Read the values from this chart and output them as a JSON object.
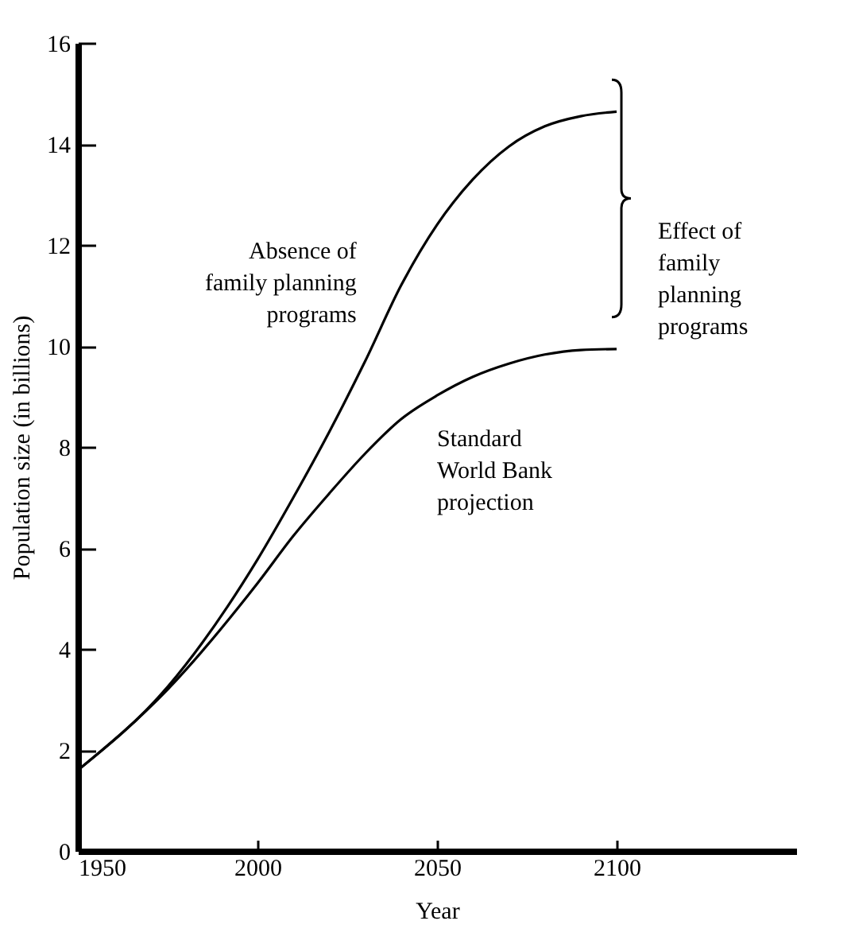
{
  "chart_data": {
    "type": "line",
    "xlabel": "Year",
    "ylabel": "Population size (in billions)",
    "x": [
      1950,
      1975,
      2000,
      2010,
      2020,
      2030,
      2040,
      2050,
      2060,
      2070,
      2080,
      2090,
      2100
    ],
    "series": [
      {
        "name": "Absence of\nfamily planning\nprograms",
        "color": "#000000",
        "values": [
          1.6,
          3.25,
          5.77,
          7.0,
          8.3,
          9.7,
          11.2,
          12.4,
          13.3,
          13.95,
          14.35,
          14.55,
          14.64
        ]
      },
      {
        "name": "Standard\nWorld Bank\nprojection",
        "color": "#000000",
        "values": [
          1.6,
          3.2,
          5.3,
          6.24,
          7.08,
          7.87,
          8.55,
          9.02,
          9.39,
          9.65,
          9.83,
          9.92,
          9.94
        ]
      }
    ],
    "xlim": [
      1950,
      2150
    ],
    "xticks": [
      1950,
      2000,
      2050,
      2100
    ],
    "ylim": [
      0,
      16
    ],
    "yticks": [
      0,
      2,
      4,
      6,
      8,
      10,
      12,
      14,
      16
    ],
    "grid": false,
    "legend": false,
    "marker": "none",
    "line_style": "solid",
    "annotations": [
      "Effect of\nfamily\nplanning\nprograms"
    ]
  }
}
